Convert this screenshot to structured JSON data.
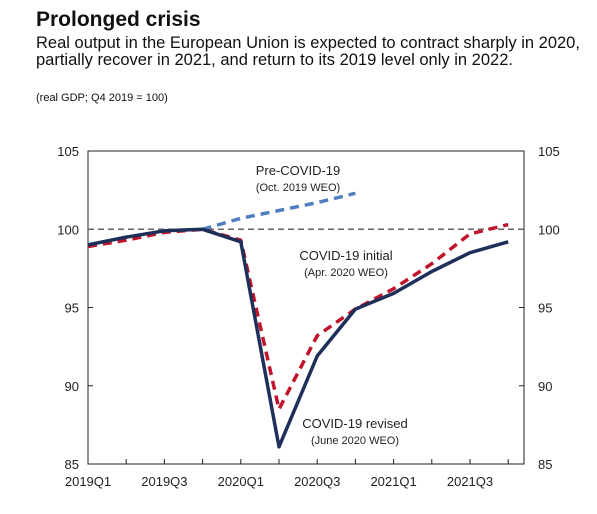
{
  "header": {
    "title": "Prolonged crisis",
    "subtitle": "Real output in the European Union is expected to contract sharply in 2020, partially recover in 2021, and return to its 2019 level only in 2022.",
    "unit_note": "(real GDP; Q4 2019 = 100)"
  },
  "colors": {
    "pre_covid": "#4f7fc0",
    "initial": "#c0152a",
    "revised": "#1e2f5a",
    "reference": "#666666"
  },
  "chart_data": {
    "type": "line",
    "title": "Prolonged crisis",
    "xlabel": "",
    "ylabel": "",
    "ylim": [
      85,
      105
    ],
    "y_ticks": [
      85,
      90,
      95,
      100,
      105
    ],
    "y_tick_labels": [
      "85",
      "90",
      "95",
      "100",
      "105"
    ],
    "categories": [
      "2019Q1",
      "2019Q2",
      "2019Q3",
      "2019Q4",
      "2020Q1",
      "2020Q2",
      "2020Q3",
      "2020Q4",
      "2021Q1",
      "2021Q2",
      "2021Q3",
      "2021Q4"
    ],
    "x_tick_labels": [
      "2019Q1",
      "2019Q3",
      "2020Q1",
      "2020Q3",
      "2021Q1",
      "2021Q3"
    ],
    "reference_line": 100,
    "grid": false,
    "series": [
      {
        "name": "Pre-COVID-19",
        "note": "(Oct. 2019 WEO)",
        "style": "dashed",
        "values": [
          null,
          null,
          null,
          100.0,
          100.7,
          101.2,
          101.7,
          102.3,
          null,
          null,
          null,
          null
        ]
      },
      {
        "name": "COVID-19 initial",
        "note": "(Apr. 2020 WEO)",
        "style": "dashed",
        "values": [
          98.9,
          99.3,
          99.8,
          100.0,
          99.3,
          88.5,
          93.2,
          94.9,
          96.2,
          97.8,
          99.7,
          100.3
        ]
      },
      {
        "name": "COVID-19 revised",
        "note": "(June 2020 WEO)",
        "style": "solid",
        "values": [
          99.0,
          99.5,
          99.9,
          100.0,
          99.2,
          86.1,
          91.9,
          94.9,
          95.9,
          97.3,
          98.5,
          99.2
        ]
      }
    ]
  }
}
